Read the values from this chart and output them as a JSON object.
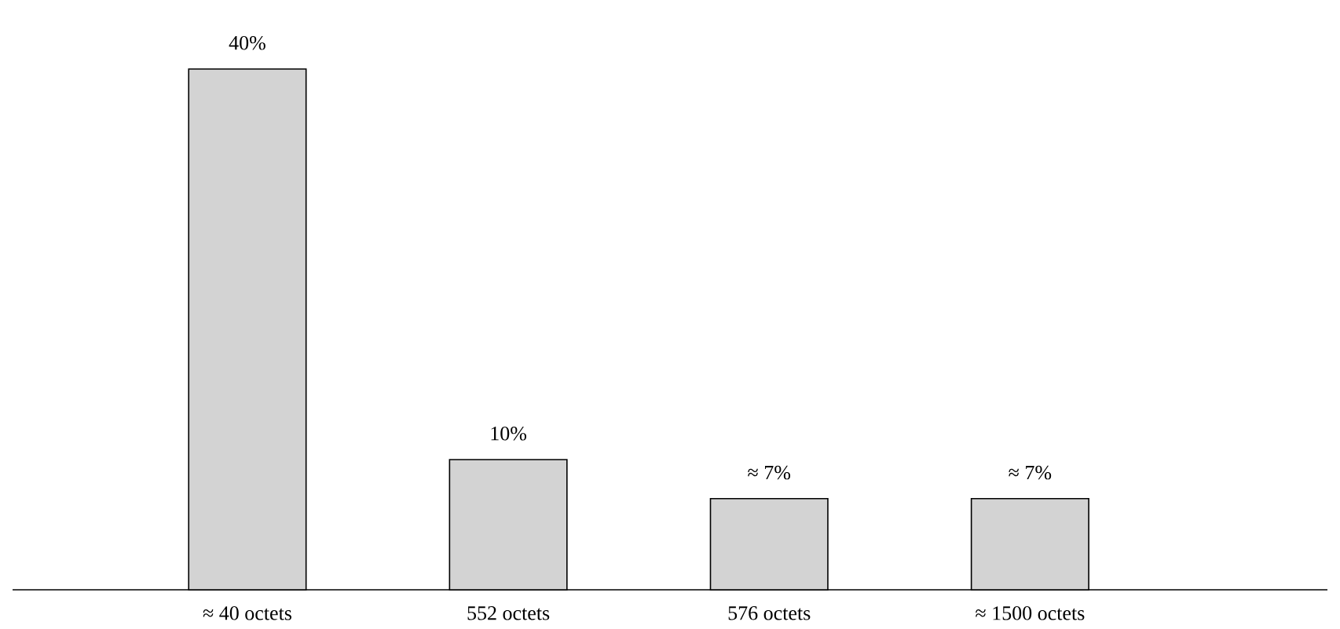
{
  "chart_data": {
    "type": "bar",
    "categories": [
      "≈ 40 octets",
      "552 octets",
      "576 octets",
      "≈ 1500 octets"
    ],
    "values": [
      40,
      10,
      7,
      7
    ],
    "value_labels": [
      "40%",
      "10%",
      "≈ 7%",
      "≈ 7%"
    ],
    "color": "#d3d3d3"
  }
}
